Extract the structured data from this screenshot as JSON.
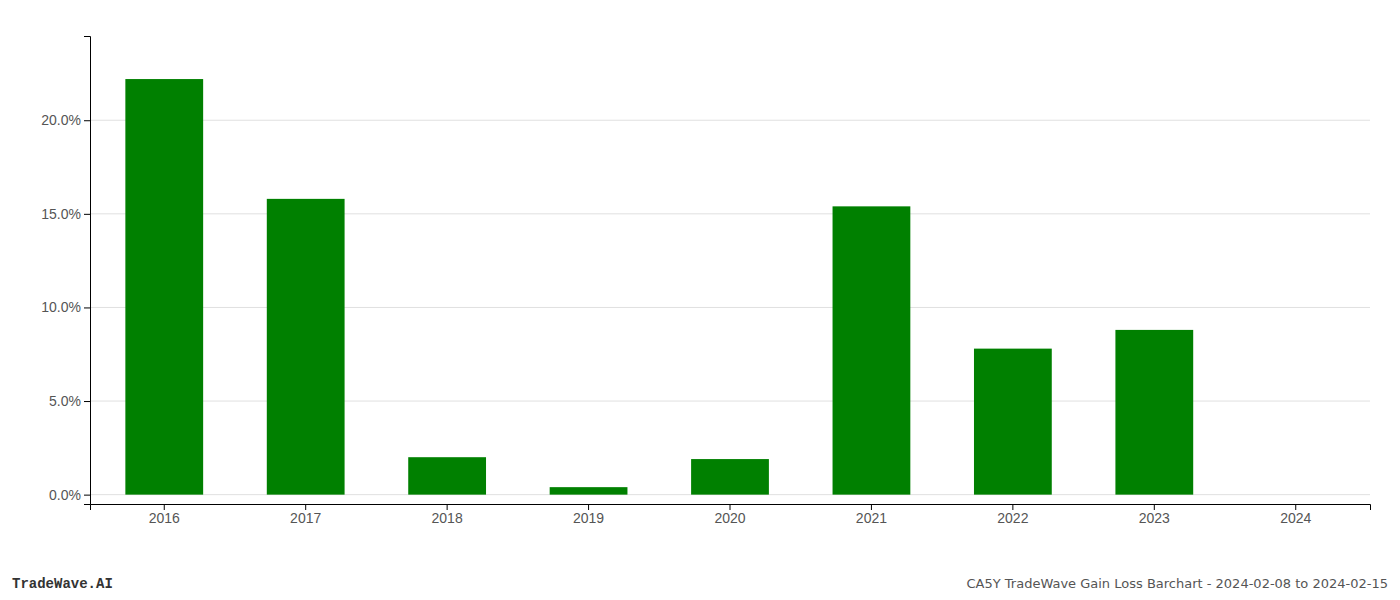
{
  "chart_data": {
    "type": "bar",
    "categories": [
      "2016",
      "2017",
      "2018",
      "2019",
      "2020",
      "2021",
      "2022",
      "2023",
      "2024"
    ],
    "values": [
      0.222,
      0.158,
      0.02,
      0.004,
      0.019,
      0.154,
      0.078,
      0.088,
      0.0
    ],
    "color": "#008000",
    "ylim": [
      -0.005,
      0.245
    ],
    "yticks": [
      {
        "value": 0.0,
        "label": "0.0%"
      },
      {
        "value": 0.05,
        "label": "5.0%"
      },
      {
        "value": 0.1,
        "label": "10.0%"
      },
      {
        "value": 0.15,
        "label": "15.0%"
      },
      {
        "value": 0.2,
        "label": "20.0%"
      }
    ],
    "grid": true,
    "annotations": [
      "TradeWave.AI",
      "CA5Y TradeWave Gain Loss Barchart - 2024-02-08 to 2024-02-15"
    ]
  }
}
